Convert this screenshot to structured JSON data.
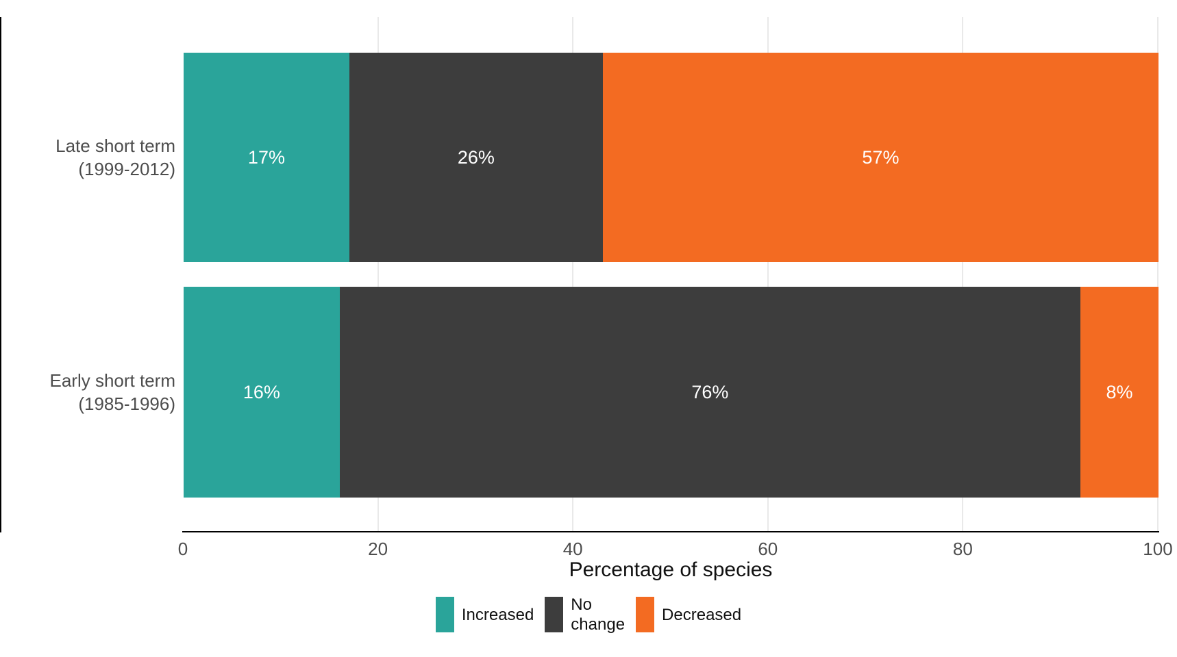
{
  "figure": {
    "background": "#ffffff",
    "axis_line_color": "#000000",
    "gridline_color": "#e9e9e9",
    "tick_label_color": "#4d4d4d",
    "bar_label_color": "#ffffff"
  },
  "chart_data": {
    "type": "bar",
    "orientation": "horizontal",
    "stacked": true,
    "title": "",
    "xlabel": "Percentage of species",
    "ylabel": "",
    "xlim": [
      0,
      100
    ],
    "x_ticks": [
      0,
      20,
      40,
      60,
      80,
      100
    ],
    "grid": "major-vertical-only",
    "legend_position": "bottom",
    "categories": [
      "Late short term\n(1999-2012)",
      "Early short term\n(1985-1996)"
    ],
    "series": [
      {
        "name": "Increased",
        "color": "#2aa49a",
        "values": [
          17,
          16
        ]
      },
      {
        "name": "No change",
        "color": "#3d3d3d",
        "values": [
          26,
          76
        ]
      },
      {
        "name": "Decreased",
        "color": "#f36b22",
        "values": [
          57,
          8
        ]
      }
    ],
    "bar_labels": [
      [
        "17%",
        "26%",
        "57%"
      ],
      [
        "16%",
        "76%",
        "8%"
      ]
    ]
  },
  "legend": {
    "labels": [
      "Increased",
      "No\nchange",
      "Decreased"
    ]
  }
}
